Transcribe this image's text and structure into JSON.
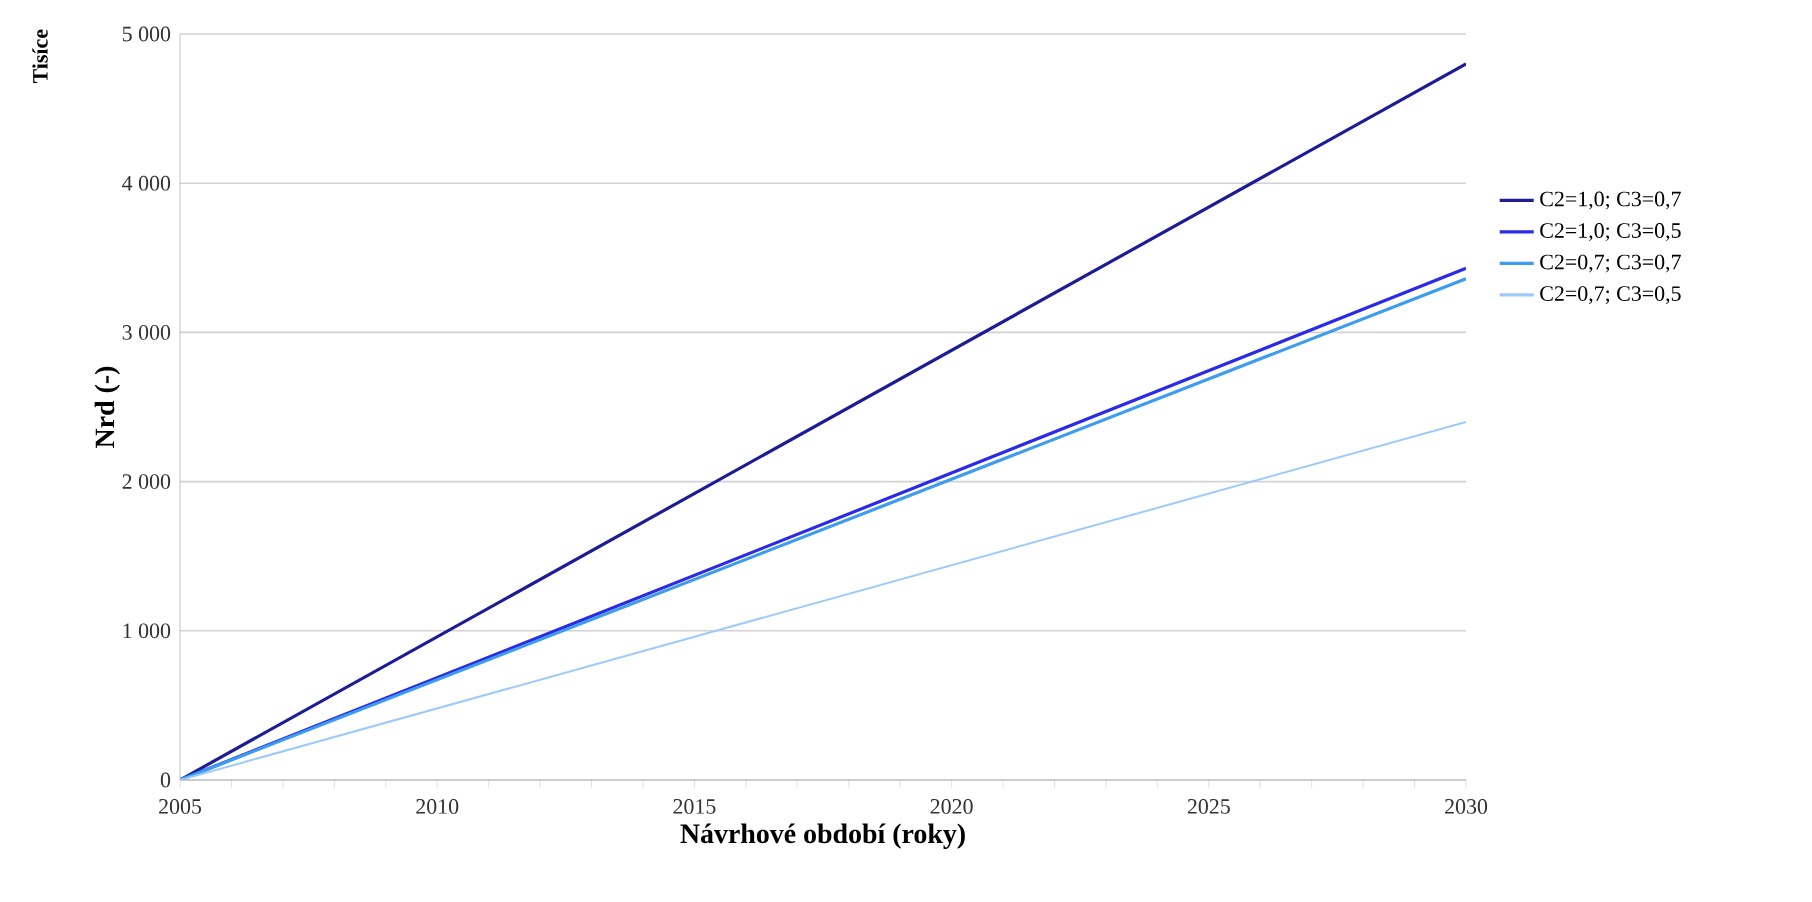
{
  "chart_data": {
    "type": "line",
    "xlabel": "Návrhové období (roky)",
    "ylabel": "Nrd  (-)",
    "annotations": [
      "Tisíce"
    ],
    "xlim": [
      2005,
      2030
    ],
    "ylim": [
      0,
      5000
    ],
    "xticks": [
      2005,
      {
        "value": 2006,
        "label": null
      },
      {
        "value": 2007,
        "label": null
      },
      {
        "value": 2008,
        "label": null
      },
      {
        "value": 2009,
        "label": null
      },
      2010,
      {
        "value": 2011,
        "label": null
      },
      {
        "value": 2012,
        "label": null
      },
      {
        "value": 2013,
        "label": null
      },
      {
        "value": 2014,
        "label": null
      },
      2015,
      {
        "value": 2016,
        "label": null
      },
      {
        "value": 2017,
        "label": null
      },
      {
        "value": 2018,
        "label": null
      },
      {
        "value": 2019,
        "label": null
      },
      2020,
      {
        "value": 2021,
        "label": null
      },
      {
        "value": 2022,
        "label": null
      },
      {
        "value": 2023,
        "label": null
      },
      {
        "value": 2024,
        "label": null
      },
      2025,
      {
        "value": 2026,
        "label": null
      },
      {
        "value": 2027,
        "label": null
      },
      {
        "value": 2028,
        "label": null
      },
      {
        "value": 2029,
        "label": null
      },
      2030
    ],
    "yticks": [
      0,
      {
        "value": 1000,
        "label": "1 000"
      },
      {
        "value": 2000,
        "label": "2 000"
      },
      {
        "value": 3000,
        "label": "3 000"
      },
      {
        "value": 4000,
        "label": "4 000"
      },
      {
        "value": 5000,
        "label": "5 000"
      }
    ],
    "x": [
      2005,
      2030
    ],
    "grid": "y",
    "legend": "right",
    "marker": "none",
    "line_style": "solid",
    "series": [
      {
        "name": "C2=1,0; C3=0,7",
        "color": "#1c1c96",
        "values": [
          0,
          4800
        ]
      },
      {
        "name": "C2=1,0; C3=0,5",
        "color": "#2a2ae8",
        "values": [
          0,
          3430
        ]
      },
      {
        "name": "C2=0,7; C3=0,7",
        "color": "#3d9cee",
        "values": [
          0,
          3360
        ]
      },
      {
        "name": "C2=0,7; C3=0,5",
        "color": "#9ccbfb",
        "values": [
          0,
          2400
        ]
      }
    ]
  }
}
